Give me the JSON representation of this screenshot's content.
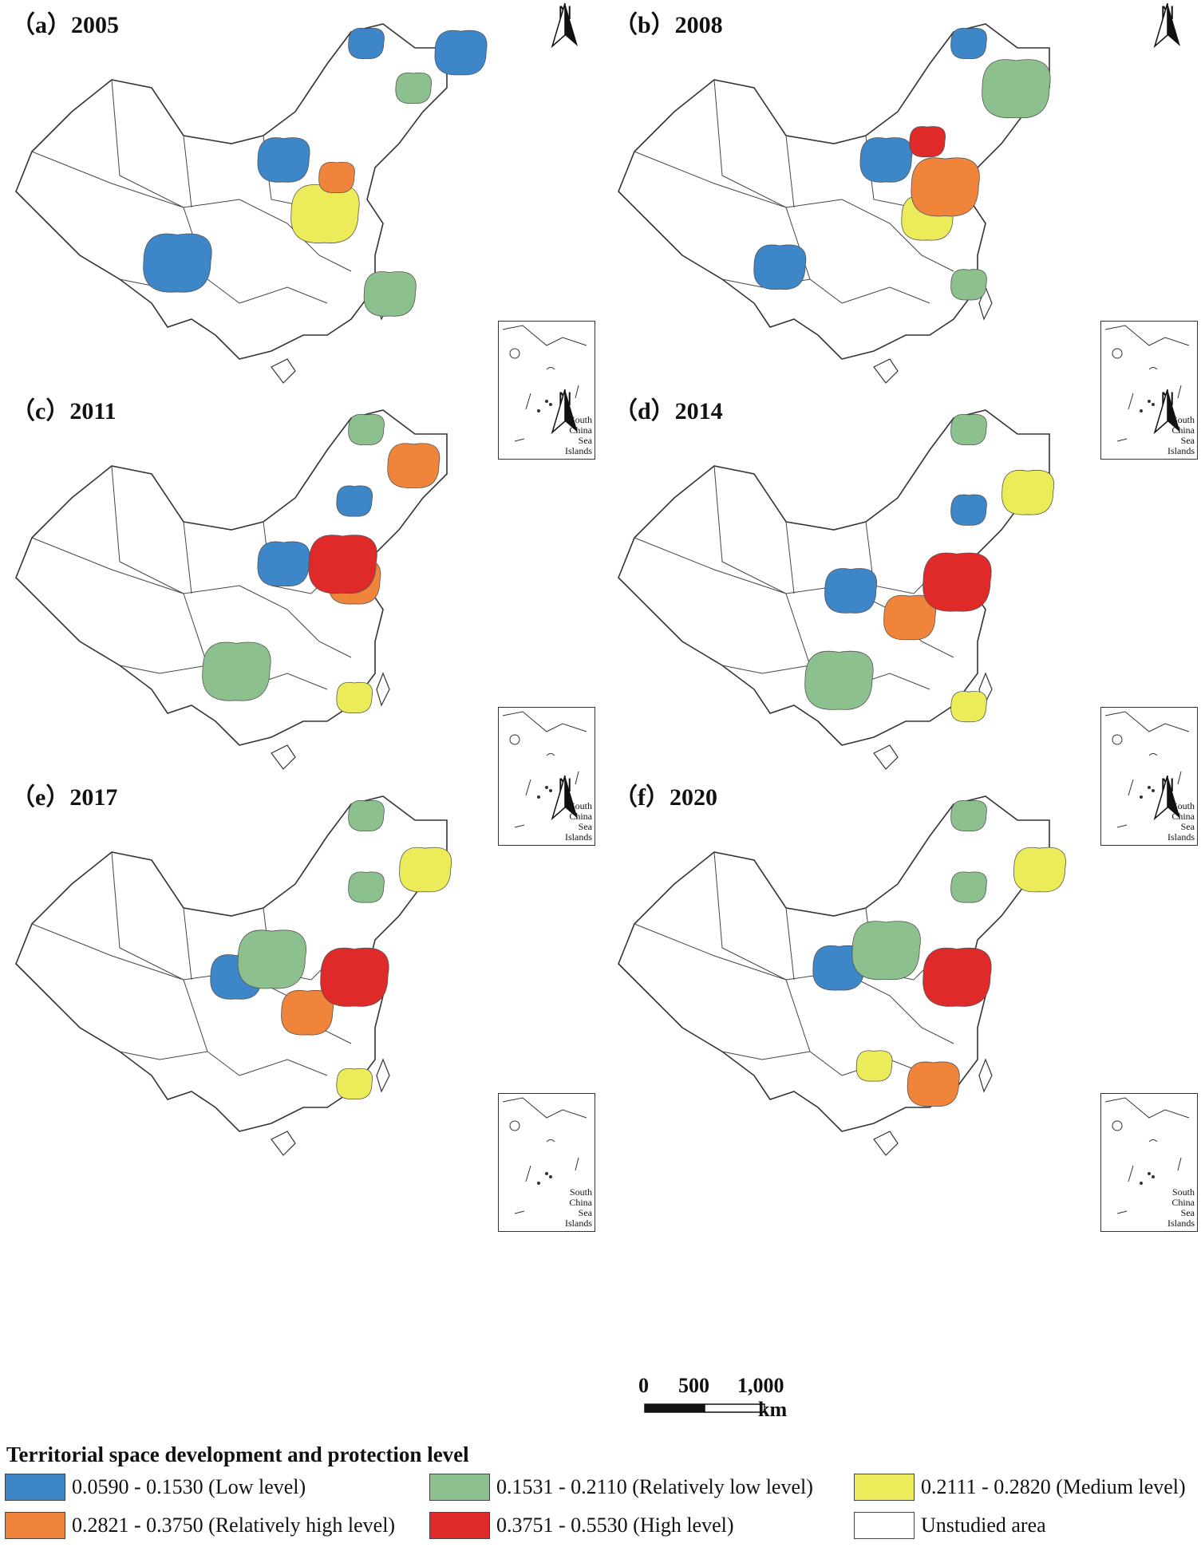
{
  "colors": {
    "low": "#3d86c8",
    "relatively_low": "#8cc08e",
    "medium": "#ecec5a",
    "relatively_high": "#f0843a",
    "high": "#e02a2a",
    "unstudied": "#ffffff"
  },
  "panels": [
    {
      "label": "（a）2005",
      "regions": [
        [
          "low",
          0.62,
          0.06
        ],
        [
          "low",
          0.48,
          0.32
        ],
        [
          "low",
          0.3,
          0.55
        ],
        [
          "relatively_low",
          0.7,
          0.16
        ],
        [
          "relatively_low",
          0.66,
          0.62
        ],
        [
          "medium",
          0.55,
          0.44
        ],
        [
          "relatively_high",
          0.57,
          0.36
        ],
        [
          "low",
          0.78,
          0.08
        ]
      ]
    },
    {
      "label": "（b）2008",
      "regions": [
        [
          "low",
          0.62,
          0.06
        ],
        [
          "low",
          0.48,
          0.32
        ],
        [
          "relatively_low",
          0.7,
          0.16
        ],
        [
          "relatively_low",
          0.62,
          0.6
        ],
        [
          "medium",
          0.55,
          0.45
        ],
        [
          "relatively_high",
          0.58,
          0.38
        ],
        [
          "high",
          0.55,
          0.28
        ],
        [
          "low",
          0.3,
          0.56
        ]
      ]
    },
    {
      "label": "（c）2011",
      "regions": [
        [
          "relatively_low",
          0.62,
          0.06
        ],
        [
          "low",
          0.48,
          0.36
        ],
        [
          "relatively_low",
          0.4,
          0.6
        ],
        [
          "medium",
          0.6,
          0.66
        ],
        [
          "relatively_high",
          0.6,
          0.4
        ],
        [
          "high",
          0.58,
          0.36
        ],
        [
          "low",
          0.6,
          0.22
        ],
        [
          "relatively_high",
          0.7,
          0.14
        ]
      ]
    },
    {
      "label": "（d）2014",
      "regions": [
        [
          "relatively_low",
          0.62,
          0.06
        ],
        [
          "low",
          0.42,
          0.42
        ],
        [
          "relatively_low",
          0.4,
          0.62
        ],
        [
          "medium",
          0.62,
          0.68
        ],
        [
          "relatively_high",
          0.52,
          0.48
        ],
        [
          "high",
          0.6,
          0.4
        ],
        [
          "low",
          0.62,
          0.24
        ],
        [
          "medium",
          0.72,
          0.2
        ]
      ]
    },
    {
      "label": "（e）2017",
      "regions": [
        [
          "relatively_low",
          0.62,
          0.06
        ],
        [
          "low",
          0.4,
          0.42
        ],
        [
          "relatively_low",
          0.46,
          0.38
        ],
        [
          "medium",
          0.6,
          0.66
        ],
        [
          "relatively_high",
          0.52,
          0.5
        ],
        [
          "high",
          0.6,
          0.42
        ],
        [
          "relatively_low",
          0.62,
          0.22
        ],
        [
          "medium",
          0.72,
          0.18
        ]
      ]
    },
    {
      "label": "（f）2020",
      "regions": [
        [
          "relatively_low",
          0.62,
          0.06
        ],
        [
          "low",
          0.4,
          0.4
        ],
        [
          "relatively_low",
          0.48,
          0.36
        ],
        [
          "medium",
          0.46,
          0.62
        ],
        [
          "relatively_high",
          0.56,
          0.66
        ],
        [
          "high",
          0.6,
          0.42
        ],
        [
          "relatively_low",
          0.62,
          0.22
        ],
        [
          "medium",
          0.74,
          0.18
        ]
      ]
    }
  ],
  "north_label": "N",
  "inset_label": [
    "South",
    "China",
    "Sea",
    "Islands"
  ],
  "scale": {
    "labels": [
      "0",
      "500",
      "1,000"
    ],
    "unit": "km"
  },
  "legend": {
    "title": "Territorial space development and protection level",
    "items": [
      {
        "key": "low",
        "label": "0.0590 - 0.1530 (Low level)"
      },
      {
        "key": "relatively_low",
        "label": "0.1531 - 0.2110 (Relatively low level)"
      },
      {
        "key": "medium",
        "label": "0.2111 - 0.2820 (Medium level)"
      },
      {
        "key": "relatively_high",
        "label": "0.2821 - 0.3750 (Relatively high level)"
      },
      {
        "key": "high",
        "label": "0.3751 - 0.5530 (High level)"
      },
      {
        "key": "unstudied",
        "label": "Unstudied area"
      }
    ]
  }
}
